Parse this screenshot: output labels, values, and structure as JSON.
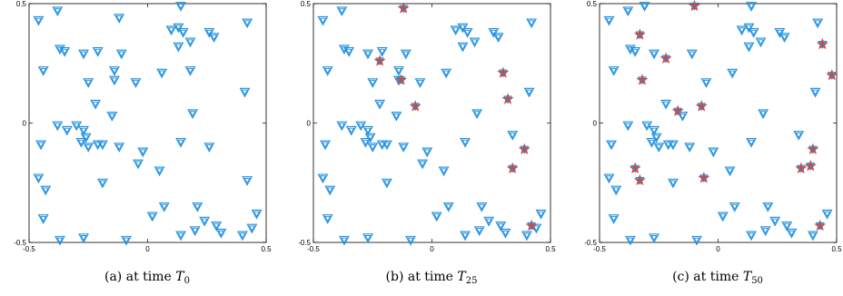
{
  "chart_data": [
    {
      "type": "scatter",
      "caption_prefix": "(a)  at time ",
      "caption_symbol": "T",
      "caption_subscript": "0",
      "xlim": [
        -0.5,
        0.5
      ],
      "ylim": [
        -0.5,
        0.5
      ],
      "xticks": [
        "-0.5",
        "0",
        "0.5"
      ],
      "yticks": [
        "0.5",
        "0",
        "-0.5"
      ],
      "grid": false,
      "marker_color": "#1e8fe0",
      "highlight_color": "#e8402e",
      "points": [
        [
          -0.46,
          0.43
        ],
        [
          -0.38,
          0.47
        ],
        [
          -0.37,
          0.31
        ],
        [
          -0.35,
          0.3
        ],
        [
          -0.44,
          0.22
        ],
        [
          -0.27,
          0.29
        ],
        [
          -0.21,
          0.3
        ],
        [
          -0.25,
          0.17
        ],
        [
          -0.14,
          0.22
        ],
        [
          -0.11,
          0.29
        ],
        [
          -0.12,
          0.44
        ],
        [
          -0.05,
          0.17
        ],
        [
          -0.22,
          0.08
        ],
        [
          -0.14,
          0.18
        ],
        [
          -0.15,
          0.03
        ],
        [
          -0.3,
          -0.01
        ],
        [
          -0.27,
          -0.03
        ],
        [
          -0.28,
          -0.08
        ],
        [
          -0.26,
          -0.06
        ],
        [
          -0.25,
          -0.1
        ],
        [
          -0.21,
          -0.09
        ],
        [
          -0.19,
          -0.09
        ],
        [
          -0.45,
          -0.09
        ],
        [
          -0.34,
          -0.03
        ],
        [
          -0.38,
          -0.01
        ],
        [
          0.1,
          0.39
        ],
        [
          0.13,
          0.4
        ],
        [
          0.15,
          0.38
        ],
        [
          0.18,
          0.34
        ],
        [
          0.13,
          0.32
        ],
        [
          0.18,
          0.22
        ],
        [
          0.06,
          0.21
        ],
        [
          0.26,
          0.38
        ],
        [
          0.28,
          0.36
        ],
        [
          0.41,
          0.13
        ],
        [
          0.42,
          0.42
        ],
        [
          0.14,
          0.49
        ],
        [
          0.19,
          0.04
        ],
        [
          0.14,
          -0.08
        ],
        [
          -0.12,
          -0.1
        ],
        [
          0.05,
          -0.2
        ],
        [
          -0.04,
          -0.17
        ],
        [
          -0.02,
          -0.12
        ],
        [
          -0.19,
          -0.25
        ],
        [
          -0.46,
          -0.23
        ],
        [
          -0.43,
          -0.28
        ],
        [
          -0.44,
          -0.4
        ],
        [
          -0.37,
          -0.49
        ],
        [
          -0.27,
          -0.48
        ],
        [
          -0.09,
          -0.49
        ],
        [
          0.02,
          -0.39
        ],
        [
          0.07,
          -0.35
        ],
        [
          0.14,
          -0.47
        ],
        [
          0.2,
          -0.45
        ],
        [
          0.21,
          -0.35
        ],
        [
          0.24,
          -0.41
        ],
        [
          0.29,
          -0.43
        ],
        [
          0.31,
          -0.46
        ],
        [
          0.4,
          -0.47
        ],
        [
          0.42,
          -0.24
        ],
        [
          0.44,
          -0.44
        ],
        [
          0.46,
          -0.38
        ],
        [
          0.26,
          -0.1
        ]
      ],
      "highlighted": []
    },
    {
      "type": "scatter",
      "caption_prefix": "(b)  at time ",
      "caption_symbol": "T",
      "caption_subscript": "25",
      "xlim": [
        -0.5,
        0.5
      ],
      "ylim": [
        -0.5,
        0.5
      ],
      "xticks": [
        "-0.5",
        "0",
        "0.5"
      ],
      "yticks": [
        "0.5",
        "0",
        "-0.5"
      ],
      "grid": false,
      "marker_color": "#1e8fe0",
      "highlight_color": "#e8402e",
      "points": [
        [
          -0.46,
          0.43
        ],
        [
          -0.38,
          0.47
        ],
        [
          -0.37,
          0.31
        ],
        [
          -0.35,
          0.3
        ],
        [
          -0.44,
          0.22
        ],
        [
          -0.27,
          0.29
        ],
        [
          -0.21,
          0.3
        ],
        [
          -0.25,
          0.17
        ],
        [
          -0.14,
          0.22
        ],
        [
          -0.11,
          0.29
        ],
        [
          -0.05,
          0.17
        ],
        [
          -0.22,
          0.08
        ],
        [
          -0.14,
          0.18
        ],
        [
          -0.15,
          0.03
        ],
        [
          -0.3,
          -0.01
        ],
        [
          -0.27,
          -0.03
        ],
        [
          -0.28,
          -0.08
        ],
        [
          -0.26,
          -0.06
        ],
        [
          -0.25,
          -0.1
        ],
        [
          -0.21,
          -0.09
        ],
        [
          -0.19,
          -0.09
        ],
        [
          -0.45,
          -0.09
        ],
        [
          -0.34,
          -0.03
        ],
        [
          -0.38,
          -0.01
        ],
        [
          0.1,
          0.39
        ],
        [
          0.13,
          0.4
        ],
        [
          0.15,
          0.38
        ],
        [
          0.18,
          0.34
        ],
        [
          0.13,
          0.32
        ],
        [
          0.06,
          0.21
        ],
        [
          0.26,
          0.38
        ],
        [
          0.28,
          0.36
        ],
        [
          0.41,
          0.13
        ],
        [
          0.42,
          0.42
        ],
        [
          0.19,
          0.04
        ],
        [
          0.14,
          -0.08
        ],
        [
          -0.12,
          -0.1
        ],
        [
          0.05,
          -0.2
        ],
        [
          -0.04,
          -0.17
        ],
        [
          -0.02,
          -0.12
        ],
        [
          -0.19,
          -0.25
        ],
        [
          -0.46,
          -0.23
        ],
        [
          -0.43,
          -0.28
        ],
        [
          -0.44,
          -0.4
        ],
        [
          -0.37,
          -0.49
        ],
        [
          -0.27,
          -0.48
        ],
        [
          -0.09,
          -0.49
        ],
        [
          0.02,
          -0.39
        ],
        [
          0.07,
          -0.35
        ],
        [
          0.14,
          -0.47
        ],
        [
          0.2,
          -0.45
        ],
        [
          0.21,
          -0.35
        ],
        [
          0.24,
          -0.41
        ],
        [
          0.29,
          -0.43
        ],
        [
          0.31,
          -0.46
        ],
        [
          0.4,
          -0.47
        ],
        [
          0.44,
          -0.44
        ],
        [
          0.46,
          -0.38
        ],
        [
          0.34,
          -0.05
        ]
      ],
      "highlighted": [
        [
          -0.12,
          0.48
        ],
        [
          -0.22,
          0.26
        ],
        [
          -0.13,
          0.18
        ],
        [
          -0.07,
          0.07
        ],
        [
          0.3,
          0.21
        ],
        [
          0.32,
          0.1
        ],
        [
          0.39,
          -0.11
        ],
        [
          0.34,
          -0.19
        ],
        [
          0.42,
          -0.43
        ]
      ]
    },
    {
      "type": "scatter",
      "caption_prefix": "(c)  at time ",
      "caption_symbol": "T",
      "caption_subscript": "50",
      "xlim": [
        -0.5,
        0.5
      ],
      "ylim": [
        -0.5,
        0.5
      ],
      "xticks": [
        "-0.5",
        "0",
        "0.5"
      ],
      "yticks": [
        "0.5",
        "0",
        "-0.5"
      ],
      "grid": false,
      "marker_color": "#1e8fe0",
      "highlight_color": "#e8402e",
      "points": [
        [
          -0.46,
          0.43
        ],
        [
          -0.38,
          0.47
        ],
        [
          -0.37,
          0.31
        ],
        [
          -0.35,
          0.3
        ],
        [
          -0.44,
          0.22
        ],
        [
          -0.27,
          0.29
        ],
        [
          -0.11,
          0.29
        ],
        [
          -0.05,
          0.17
        ],
        [
          -0.22,
          0.08
        ],
        [
          -0.15,
          0.03
        ],
        [
          -0.3,
          -0.01
        ],
        [
          -0.27,
          -0.03
        ],
        [
          -0.28,
          -0.08
        ],
        [
          -0.26,
          -0.06
        ],
        [
          -0.25,
          -0.1
        ],
        [
          -0.21,
          -0.09
        ],
        [
          -0.19,
          -0.09
        ],
        [
          -0.45,
          -0.09
        ],
        [
          -0.38,
          -0.01
        ],
        [
          0.1,
          0.39
        ],
        [
          0.13,
          0.4
        ],
        [
          0.15,
          0.38
        ],
        [
          0.18,
          0.34
        ],
        [
          0.13,
          0.32
        ],
        [
          0.06,
          0.21
        ],
        [
          0.26,
          0.38
        ],
        [
          0.28,
          0.36
        ],
        [
          0.41,
          0.13
        ],
        [
          0.42,
          0.42
        ],
        [
          0.14,
          0.49
        ],
        [
          0.19,
          0.04
        ],
        [
          0.14,
          -0.08
        ],
        [
          -0.12,
          -0.1
        ],
        [
          0.05,
          -0.2
        ],
        [
          -0.02,
          -0.12
        ],
        [
          -0.19,
          -0.25
        ],
        [
          -0.46,
          -0.23
        ],
        [
          -0.43,
          -0.28
        ],
        [
          -0.44,
          -0.4
        ],
        [
          -0.37,
          -0.49
        ],
        [
          -0.27,
          -0.48
        ],
        [
          -0.09,
          -0.49
        ],
        [
          0.02,
          -0.39
        ],
        [
          0.07,
          -0.35
        ],
        [
          0.14,
          -0.47
        ],
        [
          0.2,
          -0.45
        ],
        [
          0.21,
          -0.35
        ],
        [
          0.24,
          -0.41
        ],
        [
          0.29,
          -0.43
        ],
        [
          0.31,
          -0.46
        ],
        [
          0.4,
          -0.47
        ],
        [
          0.46,
          -0.38
        ],
        [
          0.34,
          -0.05
        ],
        [
          -0.31,
          0.49
        ]
      ],
      "highlighted": [
        [
          -0.1,
          0.49
        ],
        [
          -0.33,
          0.37
        ],
        [
          -0.22,
          0.27
        ],
        [
          -0.32,
          0.18
        ],
        [
          -0.17,
          0.05
        ],
        [
          -0.07,
          0.07
        ],
        [
          0.44,
          0.33
        ],
        [
          0.48,
          0.2
        ],
        [
          -0.35,
          -0.19
        ],
        [
          -0.33,
          -0.24
        ],
        [
          -0.06,
          -0.23
        ],
        [
          0.35,
          -0.19
        ],
        [
          0.39,
          -0.18
        ],
        [
          0.4,
          -0.11
        ],
        [
          0.43,
          -0.43
        ]
      ]
    }
  ]
}
